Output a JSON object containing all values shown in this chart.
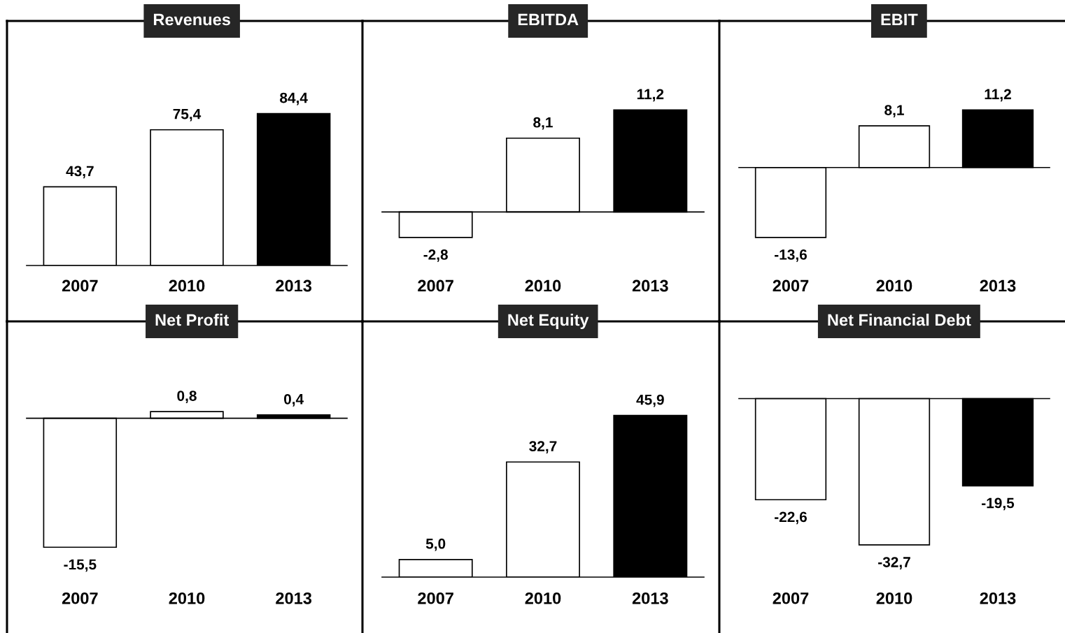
{
  "chart_data": [
    {
      "type": "bar",
      "title": "Revenues",
      "categories": [
        "2007",
        "2010",
        "2013"
      ],
      "values": [
        43.7,
        75.4,
        84.4
      ],
      "value_labels": [
        "43,7",
        "75,4",
        "84,4"
      ],
      "colors": [
        "#ffffff",
        "#ffffff",
        "#000000"
      ]
    },
    {
      "type": "bar",
      "title": "EBITDA",
      "categories": [
        "2007",
        "2010",
        "2013"
      ],
      "values": [
        -2.8,
        8.1,
        11.2
      ],
      "value_labels": [
        "-2,8",
        "8,1",
        "11,2"
      ],
      "colors": [
        "#ffffff",
        "#ffffff",
        "#000000"
      ]
    },
    {
      "type": "bar",
      "title": "EBIT",
      "categories": [
        "2007",
        "2010",
        "2013"
      ],
      "values": [
        -13.6,
        8.1,
        11.2
      ],
      "value_labels": [
        "-13,6",
        "8,1",
        "11,2"
      ],
      "colors": [
        "#ffffff",
        "#ffffff",
        "#000000"
      ]
    },
    {
      "type": "bar",
      "title": "Net Profit",
      "categories": [
        "2007",
        "2010",
        "2013"
      ],
      "values": [
        -15.5,
        0.8,
        0.4
      ],
      "value_labels": [
        "-15,5",
        "0,8",
        "0,4"
      ],
      "colors": [
        "#ffffff",
        "#ffffff",
        "#000000"
      ]
    },
    {
      "type": "bar",
      "title": "Net Equity",
      "categories": [
        "2007",
        "2010",
        "2013"
      ],
      "values": [
        5.0,
        32.7,
        45.9
      ],
      "value_labels": [
        "5,0",
        "32,7",
        "45,9"
      ],
      "colors": [
        "#ffffff",
        "#ffffff",
        "#000000"
      ]
    },
    {
      "type": "bar",
      "title": "Net Financial Debt",
      "categories": [
        "2007",
        "2010",
        "2013"
      ],
      "values": [
        -22.6,
        -32.7,
        -19.5
      ],
      "value_labels": [
        "-22,6",
        "-32,7",
        "-19,5"
      ],
      "colors": [
        "#ffffff",
        "#ffffff",
        "#000000"
      ]
    }
  ]
}
